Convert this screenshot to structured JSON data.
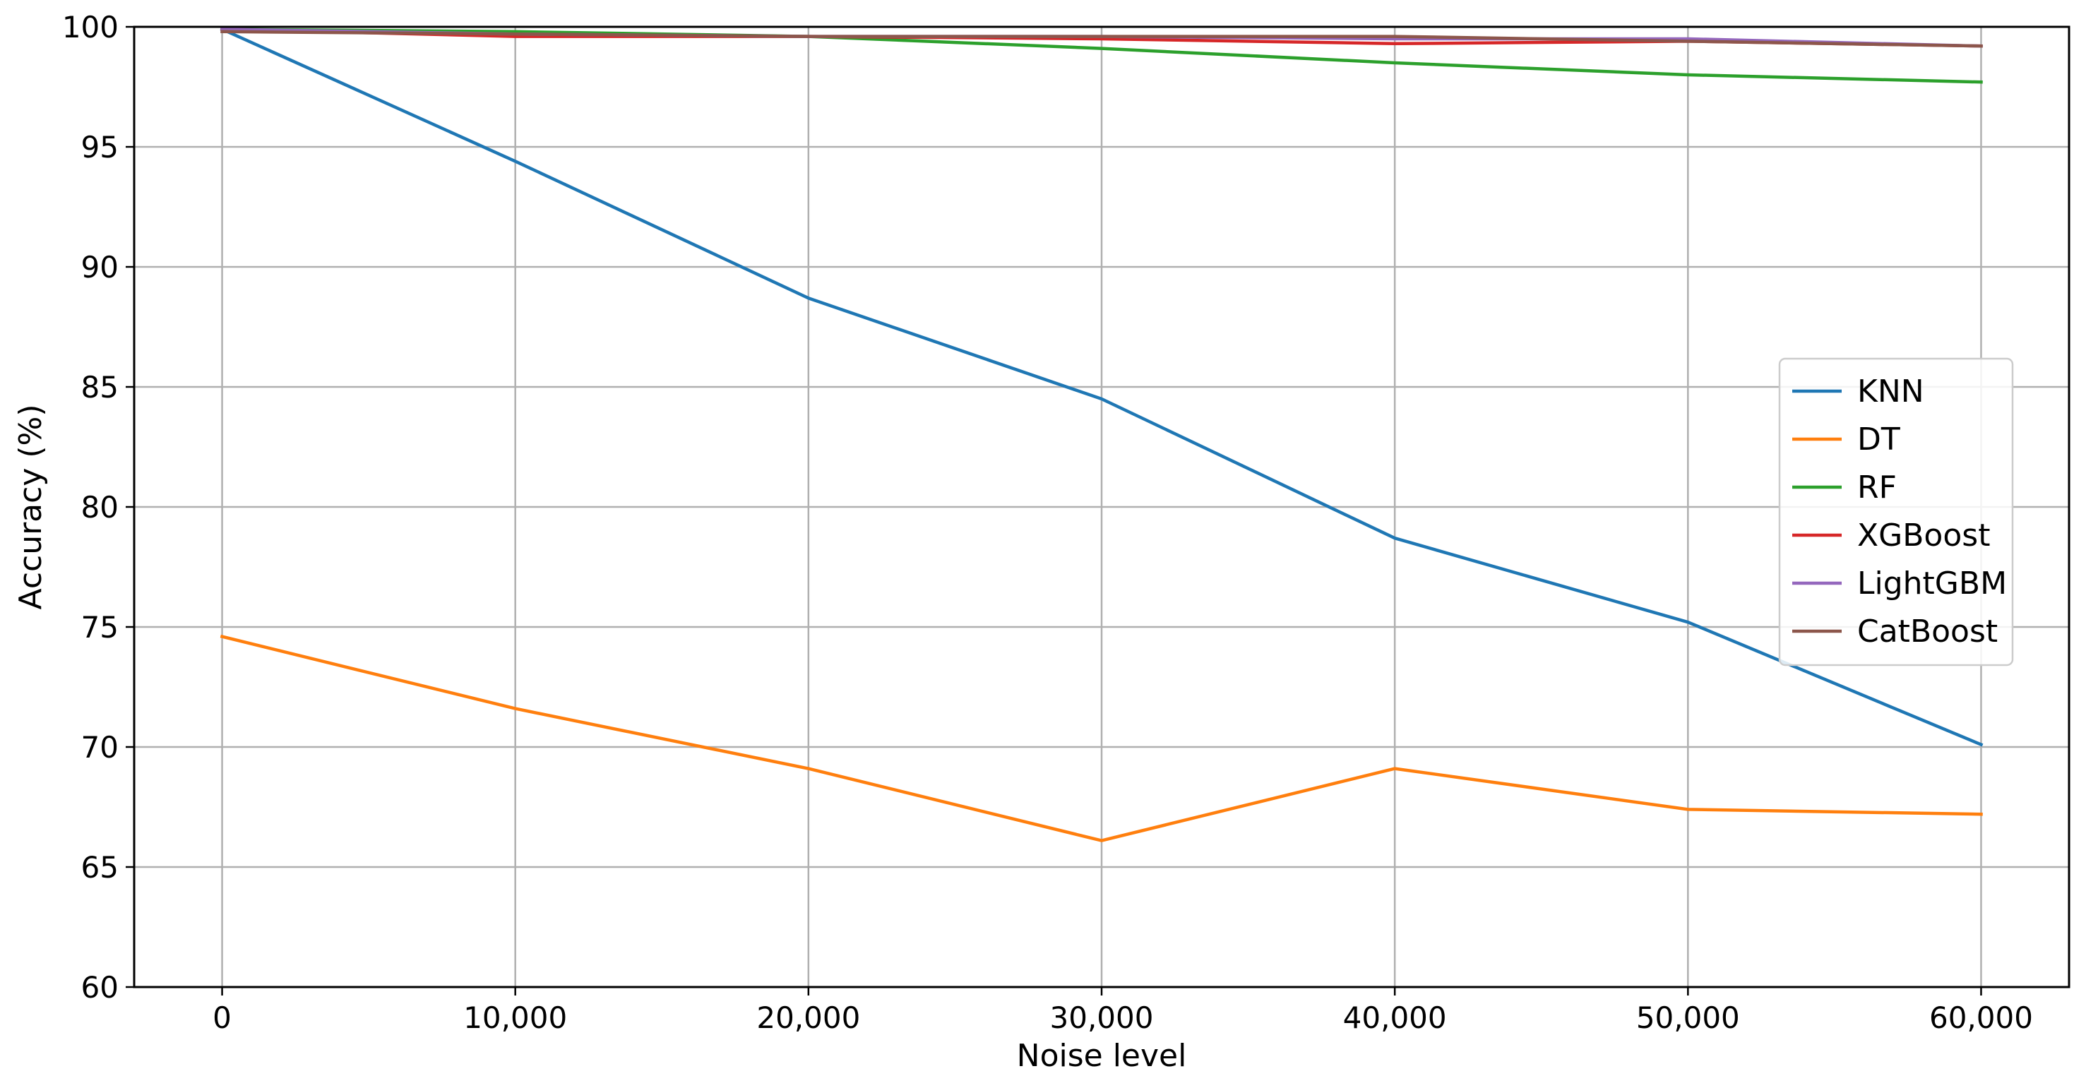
{
  "chart_data": {
    "type": "line",
    "title": "",
    "xlabel": "Noise level",
    "ylabel": "Accuracy (%)",
    "x": [
      0,
      10000,
      20000,
      30000,
      40000,
      50000,
      60000
    ],
    "xticks": [
      "0",
      "10,000",
      "20,000",
      "30,000",
      "40,000",
      "50,000",
      "60,000"
    ],
    "yticks": [
      "60",
      "65",
      "70",
      "75",
      "80",
      "85",
      "90",
      "95",
      "100"
    ],
    "xlim": [
      -3000,
      63000
    ],
    "ylim": [
      60,
      100
    ],
    "grid": true,
    "legend_position": "center-right",
    "series": [
      {
        "name": "KNN",
        "color": "#1f77b4",
        "values": [
          99.9,
          94.4,
          88.7,
          84.5,
          78.7,
          75.2,
          70.1
        ]
      },
      {
        "name": "DT",
        "color": "#ff7f0e",
        "values": [
          74.6,
          71.6,
          69.1,
          66.1,
          69.1,
          67.4,
          67.2
        ]
      },
      {
        "name": "RF",
        "color": "#2ca02c",
        "values": [
          99.9,
          99.8,
          99.6,
          99.1,
          98.5,
          98.0,
          97.7
        ]
      },
      {
        "name": "XGBoost",
        "color": "#d62728",
        "values": [
          99.9,
          99.6,
          99.6,
          99.5,
          99.3,
          99.4,
          99.2
        ]
      },
      {
        "name": "LightGBM",
        "color": "#9467bd",
        "values": [
          99.9,
          99.7,
          99.6,
          99.6,
          99.5,
          99.5,
          99.2
        ]
      },
      {
        "name": "CatBoost",
        "color": "#8c564b",
        "values": [
          99.8,
          99.7,
          99.6,
          99.6,
          99.6,
          99.4,
          99.2
        ]
      }
    ]
  }
}
